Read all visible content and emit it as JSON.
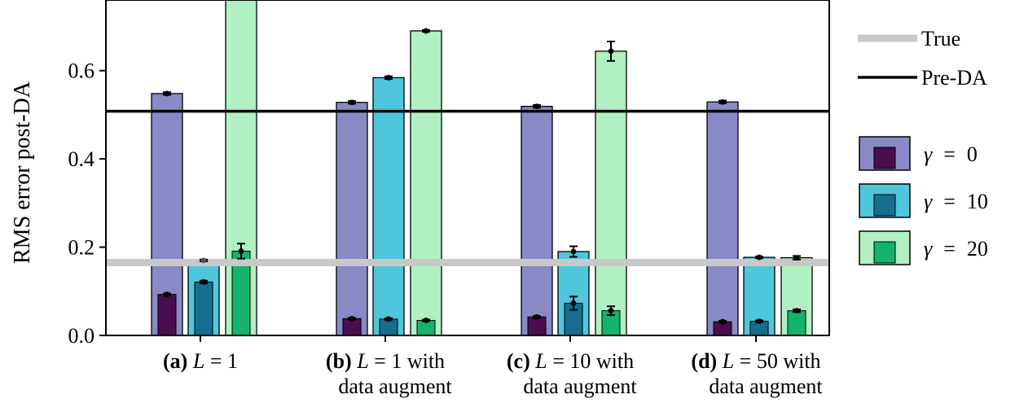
{
  "chart_data": {
    "type": "bar",
    "ylabel": "RMS error post-DA",
    "ylim": [
      0,
      0.76
    ],
    "yticks": [
      {
        "value": 0.0,
        "label": "0.0"
      },
      {
        "value": 0.2,
        "label": "0.2"
      },
      {
        "value": 0.4,
        "label": "0.4"
      },
      {
        "value": 0.6,
        "label": "0.6"
      }
    ],
    "categories": [
      {
        "tag": "(a)",
        "var": "L",
        "rest": " = 1",
        "line2": ""
      },
      {
        "tag": "(b)",
        "var": "L",
        "rest": " = 1 with",
        "line2": "data augment"
      },
      {
        "tag": "(c)",
        "var": "L",
        "rest": " = 10 with",
        "line2": "data augment"
      },
      {
        "tag": "(d)",
        "var": "L",
        "rest": " = 50 with",
        "line2": "data augment"
      }
    ],
    "series": [
      {
        "name": "γ = 0",
        "gamma": "0",
        "light_color": "#8889c5",
        "dark_color": "#4a0d4f",
        "light_values": [
          0.548,
          0.528,
          0.519,
          0.529
        ],
        "light_err": [
          0.003,
          0.003,
          0.003,
          0.003
        ],
        "dark_values": [
          0.093,
          0.038,
          0.042,
          0.031
        ],
        "dark_err": [
          0.002,
          0.002,
          0.002,
          0.002
        ]
      },
      {
        "name": "γ = 10",
        "gamma": "10",
        "light_color": "#4ec6dc",
        "dark_color": "#156e8e",
        "light_values": [
          0.17,
          0.584,
          0.19,
          0.177
        ],
        "light_err": [
          0.002,
          0.003,
          0.012,
          0.002
        ],
        "dark_values": [
          0.121,
          0.037,
          0.073,
          0.032
        ],
        "dark_err": [
          0.003,
          0.002,
          0.015,
          0.002
        ],
        "light_dot_gray": [
          true,
          false,
          false,
          false
        ]
      },
      {
        "name": "γ = 20",
        "gamma": "20",
        "light_color": "#b1f0c2",
        "dark_color": "#14b36d",
        "light_values": [
          0.76,
          0.69,
          0.644,
          0.176
        ],
        "light_err": [
          0.0,
          0.002,
          0.022,
          0.004
        ],
        "dark_values": [
          0.191,
          0.034,
          0.056,
          0.056
        ],
        "dark_err": [
          0.017,
          0.002,
          0.01,
          0.003
        ],
        "light_no_marker": [
          true,
          false,
          false,
          false
        ]
      }
    ],
    "reference_lines": [
      {
        "name": "True",
        "value": 0.165,
        "color": "#c8c8c8"
      },
      {
        "name": "Pre-DA",
        "value": 0.508,
        "color": "#000000"
      }
    ],
    "legend": {
      "lines": [
        "True",
        "Pre-DA"
      ],
      "gamma_symbol": "γ",
      "gamma_eq": "=",
      "gamma_values": [
        "0",
        "10",
        "20"
      ]
    }
  }
}
